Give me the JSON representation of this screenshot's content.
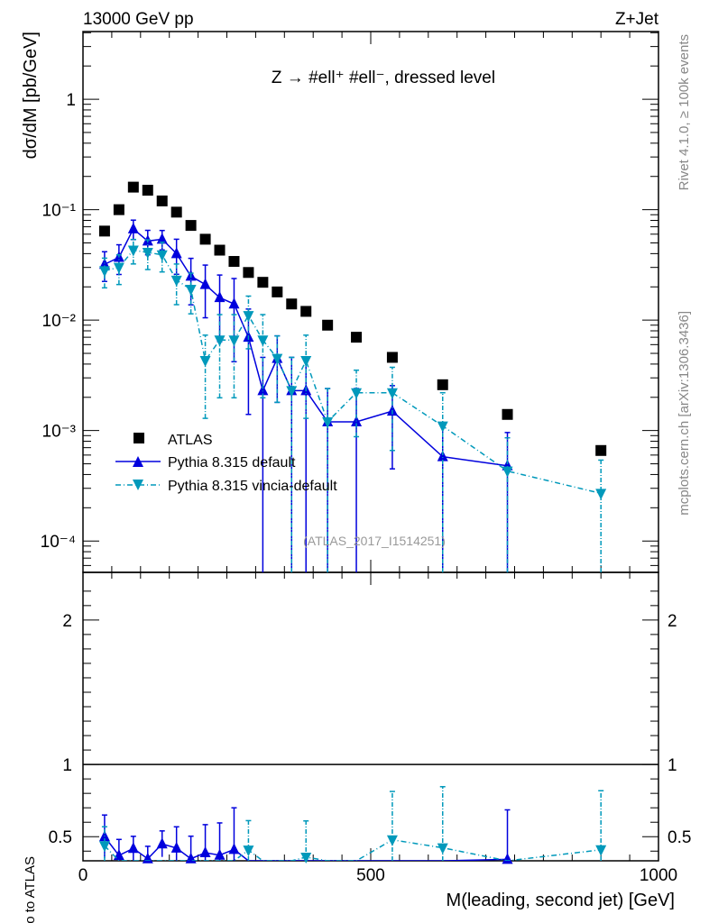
{
  "header": {
    "left": "13000 GeV pp",
    "right": "Z+Jet"
  },
  "side_labels": {
    "rivet": "Rivet 4.1.0, ≥ 100k events",
    "mcplots": "mcplots.cern.ch [arXiv:1306.3436]"
  },
  "chart_data": {
    "type": "scatter",
    "title": "Z → #ell⁺ #ell⁻, dressed level",
    "watermark": "(ATLAS_2017_I1514251)",
    "xlabel": "M(leading, second jet) [GeV]",
    "ylabel": "dσ/dM [pb/GeV]",
    "ratio_ylabel": "Ratio to ATLAS",
    "xlim": [
      0,
      1000
    ],
    "ylim": [
      5.2e-05,
      4.1
    ],
    "yscale": "log",
    "ratio_ylim": [
      0.333,
      2.33
    ],
    "x_ticks": [
      {
        "v": 0,
        "label": "0"
      },
      {
        "v": 500,
        "label": "500"
      },
      {
        "v": 1000,
        "label": "1000"
      }
    ],
    "y_ticks": [
      {
        "v": 1,
        "label": "1"
      },
      {
        "v": 0.1,
        "label": "10⁻¹"
      },
      {
        "v": 0.01,
        "label": "10⁻²"
      },
      {
        "v": 0.001,
        "label": "10⁻³"
      },
      {
        "v": 0.0001,
        "label": "10⁻⁴"
      }
    ],
    "ratio_ticks": [
      {
        "v": 0.5,
        "label": "0.5"
      },
      {
        "v": 1,
        "label": "1"
      },
      {
        "v": 2,
        "label": "2"
      }
    ],
    "legend": {
      "placement": "lower-left"
    },
    "series": [
      {
        "name": "ATLAS",
        "color": "#000000",
        "marker": "square",
        "line": "none",
        "x": [
          37.5,
          62.5,
          87.5,
          112.5,
          137.5,
          162.5,
          187.5,
          212.5,
          237.5,
          262.5,
          287.5,
          312.5,
          337.5,
          362.5,
          387.5,
          425,
          475,
          537.5,
          625,
          737.5,
          900
        ],
        "y": [
          0.064,
          0.1,
          0.16,
          0.15,
          0.12,
          0.095,
          0.072,
          0.054,
          0.043,
          0.034,
          0.027,
          0.022,
          0.018,
          0.014,
          0.012,
          0.009,
          0.007,
          0.0046,
          0.0026,
          0.0014,
          0.00066
        ]
      },
      {
        "name": "Pythia 8.315 default",
        "color": "#0000dd",
        "marker": "triangle-up",
        "line": "solid",
        "x": [
          37.5,
          62.5,
          87.5,
          112.5,
          137.5,
          162.5,
          187.5,
          212.5,
          237.5,
          262.5,
          287.5,
          312.5,
          337.5,
          362.5,
          387.5,
          425,
          475,
          537.5,
          625,
          737.5
        ],
        "y": [
          0.032,
          0.037,
          0.067,
          0.052,
          0.054,
          0.04,
          0.025,
          0.021,
          0.016,
          0.014,
          0.007,
          0.0023,
          0.0045,
          0.0023,
          0.0023,
          0.0012,
          0.0012,
          0.0015,
          0.00058,
          0.00048
        ],
        "err_rel": [
          0.3,
          0.3,
          0.2,
          0.25,
          0.2,
          0.35,
          0.45,
          0.5,
          0.6,
          0.7,
          0.8,
          1.0,
          0.6,
          1.0,
          1.0,
          1.0,
          1.0,
          0.7,
          1.0,
          1.0
        ]
      },
      {
        "name": "Pythia 8.315 vincia-default",
        "color": "#0099bb",
        "marker": "triangle-down",
        "line": "dashdot",
        "x": [
          37.5,
          62.5,
          87.5,
          112.5,
          137.5,
          162.5,
          187.5,
          212.5,
          237.5,
          262.5,
          287.5,
          312.5,
          337.5,
          362.5,
          387.5,
          425,
          475,
          537.5,
          625,
          737.5,
          900
        ],
        "y": [
          0.028,
          0.03,
          0.043,
          0.041,
          0.039,
          0.023,
          0.019,
          0.0043,
          0.0066,
          0.0066,
          0.011,
          0.0066,
          0.0045,
          0.0023,
          0.0043,
          0.0012,
          0.0022,
          0.0022,
          0.0011,
          0.00043,
          0.00027
        ],
        "err_rel": [
          0.3,
          0.3,
          0.25,
          0.3,
          0.3,
          0.4,
          0.4,
          0.7,
          0.7,
          0.7,
          0.5,
          0.7,
          0.6,
          1.0,
          0.7,
          1.0,
          0.6,
          0.7,
          1.0,
          1.0,
          1.0
        ]
      }
    ]
  }
}
